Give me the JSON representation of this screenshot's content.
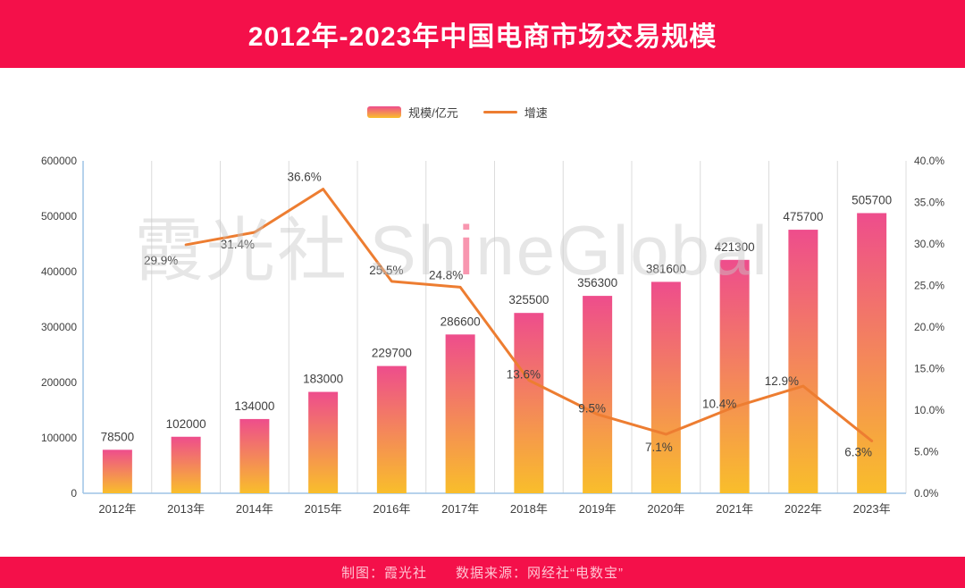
{
  "title": "2012年-2023年中国电商市场交易规模",
  "legend": {
    "bar_label": "规模/亿元",
    "line_label": "增速"
  },
  "watermark": {
    "prefix": "霞光社 Sh",
    "accent": "i",
    "suffix": "neGlobal"
  },
  "footer": {
    "credit": "制图：霞光社　　数据来源：网经社“电数宝”"
  },
  "colors": {
    "banner": "#F4104A",
    "bar_top": "#EE4D8C",
    "bar_bottom": "#F9BE2B",
    "line": "#ED7D31",
    "axis": "#9DC3E6",
    "grid": "#DCDCDC",
    "text": "#404040",
    "footer_text": "#FFC3D2"
  },
  "chart_data": {
    "type": "bar",
    "subtype": "bar-and-line-combo",
    "categories": [
      "2012年",
      "2013年",
      "2014年",
      "2015年",
      "2016年",
      "2017年",
      "2018年",
      "2019年",
      "2020年",
      "2021年",
      "2022年",
      "2023年"
    ],
    "series": [
      {
        "name": "规模/亿元",
        "type": "bar",
        "axis": "left",
        "values": [
          78500,
          102000,
          134000,
          183000,
          229700,
          286600,
          325500,
          356300,
          381600,
          421300,
          475700,
          505700
        ],
        "value_labels": [
          "78500",
          "102000",
          "134000",
          "183000",
          "229700",
          "286600",
          "325500",
          "356300",
          "381600",
          "421300",
          "475700",
          "505700"
        ]
      },
      {
        "name": "增速",
        "type": "line",
        "axis": "right",
        "start_category_index": 1,
        "values": [
          29.9,
          31.4,
          36.6,
          25.5,
          24.8,
          13.6,
          9.5,
          7.1,
          10.4,
          12.9,
          6.3
        ],
        "value_labels": [
          "29.9%",
          "31.4%",
          "36.6%",
          "25.5%",
          "24.8%",
          "13.6%",
          "9.5%",
          "7.1%",
          "10.4%",
          "12.9%",
          "6.3%"
        ]
      }
    ],
    "left_axis": {
      "min": 0,
      "max": 600000,
      "step": 100000,
      "tick_labels": [
        "0",
        "100000",
        "200000",
        "300000",
        "400000",
        "500000",
        "600000"
      ]
    },
    "right_axis": {
      "min": 0,
      "max": 40,
      "step": 5,
      "tick_labels": [
        "0.0%",
        "5.0%",
        "10.0%",
        "15.0%",
        "20.0%",
        "25.0%",
        "30.0%",
        "35.0%",
        "40.0%"
      ]
    },
    "grid": "vertical-category-separators-only",
    "legend_position": "top-center"
  }
}
